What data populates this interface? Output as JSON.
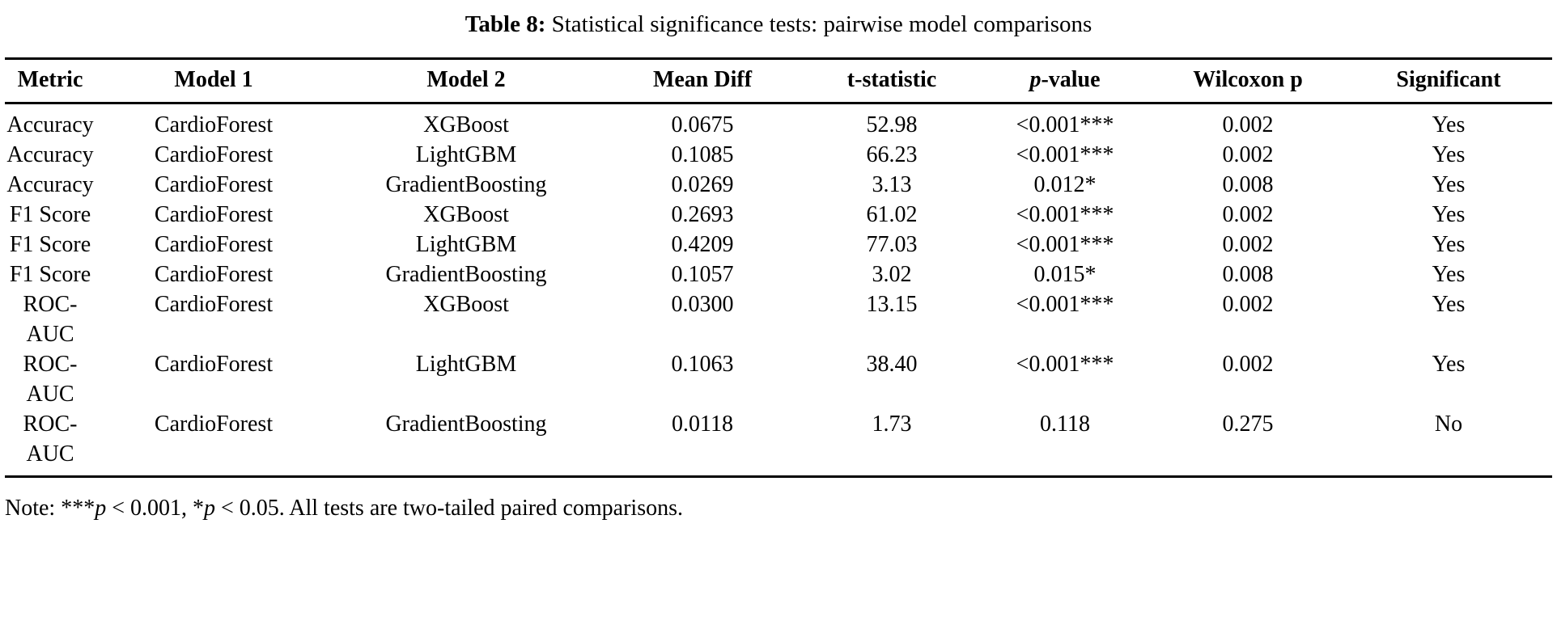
{
  "caption": {
    "label": "Table 8:",
    "text": "Statistical significance tests: pairwise model comparisons"
  },
  "table": {
    "headers": [
      {
        "text": "Metric"
      },
      {
        "text": "Model 1"
      },
      {
        "text": "Model 2"
      },
      {
        "text": "Mean Diff"
      },
      {
        "text": "t-statistic"
      },
      {
        "text": "p-value",
        "italic_first": true
      },
      {
        "text": "Wilcoxon p"
      },
      {
        "text": "Significant"
      }
    ],
    "rows": [
      [
        "Accuracy",
        "CardioForest",
        "XGBoost",
        "0.0675",
        "52.98",
        "<0.001***",
        "0.002",
        "Yes"
      ],
      [
        "Accuracy",
        "CardioForest",
        "LightGBM",
        "0.1085",
        "66.23",
        "<0.001***",
        "0.002",
        "Yes"
      ],
      [
        "Accuracy",
        "CardioForest",
        "GradientBoosting",
        "0.0269",
        "3.13",
        "0.012*",
        "0.008",
        "Yes"
      ],
      [
        "F1 Score",
        "CardioForest",
        "XGBoost",
        "0.2693",
        "61.02",
        "<0.001***",
        "0.002",
        "Yes"
      ],
      [
        "F1 Score",
        "CardioForest",
        "LightGBM",
        "0.4209",
        "77.03",
        "<0.001***",
        "0.002",
        "Yes"
      ],
      [
        "F1 Score",
        "CardioForest",
        "GradientBoosting",
        "0.1057",
        "3.02",
        "0.015*",
        "0.008",
        "Yes"
      ],
      [
        "ROC-AUC",
        "CardioForest",
        "XGBoost",
        "0.0300",
        "13.15",
        "<0.001***",
        "0.002",
        "Yes"
      ],
      [
        "ROC-AUC",
        "CardioForest",
        "LightGBM",
        "0.1063",
        "38.40",
        "<0.001***",
        "0.002",
        "Yes"
      ],
      [
        "ROC-AUC",
        "CardioForest",
        "GradientBoosting",
        "0.0118",
        "1.73",
        "0.118",
        "0.275",
        "No"
      ]
    ]
  },
  "note": {
    "segments": [
      {
        "text": "Note: "
      },
      {
        "text": "***"
      },
      {
        "text": "p",
        "italic": true
      },
      {
        "text": " < 0.001, "
      },
      {
        "text": "*"
      },
      {
        "text": "p",
        "italic": true
      },
      {
        "text": " < 0.05. All tests are two-tailed paired comparisons."
      }
    ]
  }
}
